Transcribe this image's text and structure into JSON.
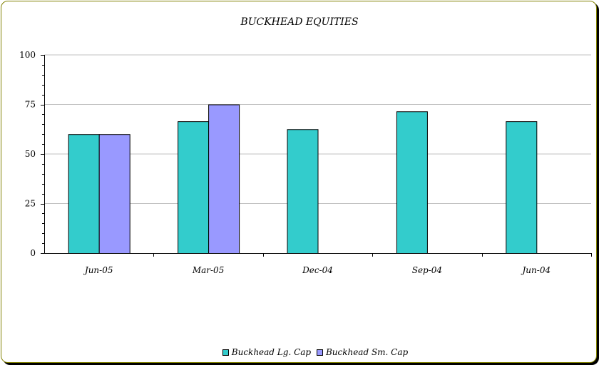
{
  "chart_data": {
    "type": "bar",
    "title": "BUCKHEAD EQUITIES",
    "categories": [
      "Jun-05",
      "Mar-05",
      "Dec-04",
      "Sep-04",
      "Jun-04"
    ],
    "series": [
      {
        "name": "Buckhead Lg. Cap",
        "color": "#33cccc",
        "values": [
          60,
          66.5,
          62.5,
          71.5,
          66.5
        ]
      },
      {
        "name": "Buckhead Sm. Cap",
        "color": "#9999ff",
        "values": [
          60,
          75,
          null,
          null,
          null
        ]
      }
    ],
    "ylim": [
      0,
      100
    ],
    "yticks": [
      "0",
      "25",
      "50",
      "75",
      "100"
    ],
    "grid": true,
    "legend_position": "bottom"
  }
}
